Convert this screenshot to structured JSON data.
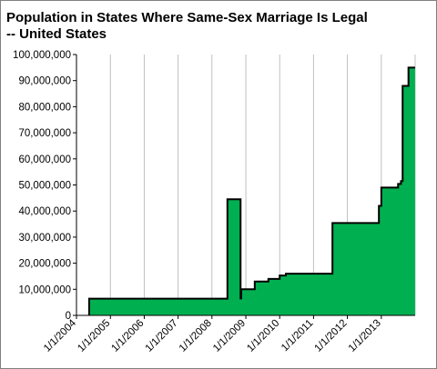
{
  "chart_data": {
    "type": "area",
    "title": "Population in States Where Same-Sex Marriage Is Legal -- United States",
    "xlabel": "",
    "ylabel": "",
    "x_ticks": [
      "1/1/2004",
      "1/1/2005",
      "1/1/2006",
      "1/1/2007",
      "1/1/2008",
      "1/1/2009",
      "1/1/2010",
      "1/1/2011",
      "1/1/2012",
      "1/1/2013"
    ],
    "xlim": [
      "2004-01-01",
      "2014-01-01"
    ],
    "y_ticks": [
      "0",
      "10,000,000",
      "20,000,000",
      "30,000,000",
      "40,000,000",
      "50,000,000",
      "60,000,000",
      "70,000,000",
      "80,000,000",
      "90,000,000",
      "100,000,000"
    ],
    "ylim": [
      0,
      100000000
    ],
    "grid": "vertical",
    "legend": "none",
    "colors": {
      "fill": "#00b050",
      "stroke": "#000000",
      "grid": "#c0c0c0"
    },
    "series": [
      {
        "points": [
          [
            "2004-05-17",
            6400000
          ],
          [
            "2008-06-16",
            44500000
          ],
          [
            "2008-11-05",
            6500000
          ],
          [
            "2008-11-12",
            10000000
          ],
          [
            "2009-04-07",
            13000000
          ],
          [
            "2009-09-01",
            14000000
          ],
          [
            "2010-01-01",
            15300000
          ],
          [
            "2010-03-09",
            16000000
          ],
          [
            "2011-07-24",
            35400000
          ],
          [
            "2012-12-06",
            42000000
          ],
          [
            "2013-01-01",
            49000000
          ],
          [
            "2013-07-01",
            50400000
          ],
          [
            "2013-08-01",
            51500000
          ],
          [
            "2013-08-19",
            88000000
          ],
          [
            "2013-10-21",
            95000000
          ],
          [
            "2013-12-31",
            95000000
          ]
        ]
      }
    ]
  }
}
